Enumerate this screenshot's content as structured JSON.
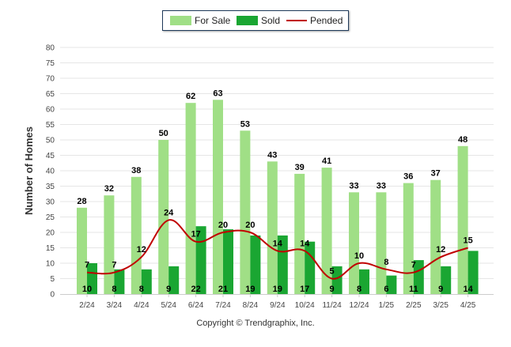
{
  "chart_data": {
    "type": "bar",
    "categories": [
      "2/24",
      "3/24",
      "4/24",
      "5/24",
      "6/24",
      "7/24",
      "8/24",
      "9/24",
      "10/24",
      "11/24",
      "12/24",
      "1/25",
      "2/25",
      "3/25",
      "4/25"
    ],
    "series": [
      {
        "name": "For Sale",
        "type": "bar",
        "color": "#a0df86",
        "values": [
          28,
          32,
          38,
          50,
          62,
          63,
          53,
          43,
          39,
          41,
          33,
          33,
          36,
          37,
          48
        ]
      },
      {
        "name": "Sold",
        "type": "bar",
        "color": "#1aa632",
        "values": [
          10,
          8,
          8,
          9,
          22,
          21,
          19,
          19,
          17,
          9,
          8,
          6,
          11,
          9,
          14
        ]
      },
      {
        "name": "Pended",
        "type": "line",
        "color": "#c00000",
        "values": [
          7,
          7,
          12,
          24,
          17,
          20,
          20,
          14,
          14,
          5,
          10,
          8,
          7,
          12,
          15
        ]
      }
    ],
    "ylabel": "Number of Homes",
    "ylim": [
      0,
      80
    ],
    "yticks": [
      0,
      5,
      10,
      15,
      20,
      25,
      30,
      35,
      40,
      45,
      50,
      55,
      60,
      65,
      70,
      75,
      80
    ],
    "grid": true,
    "legend_position": "top-center"
  },
  "footer": {
    "copyright": "Copyright © Trendgraphix, Inc."
  }
}
